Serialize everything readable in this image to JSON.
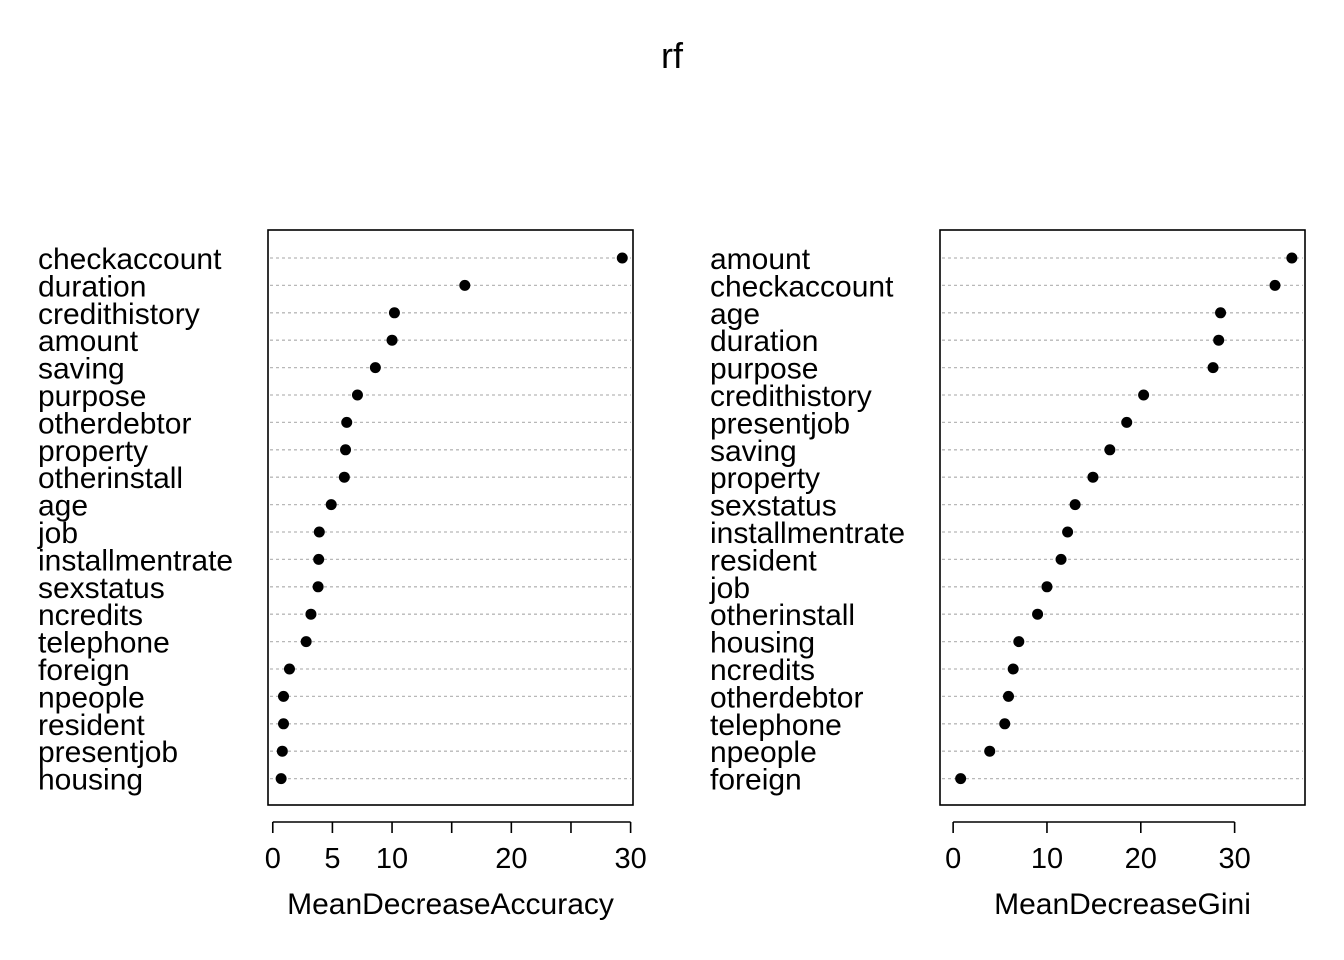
{
  "title": "rf",
  "chart_data": [
    {
      "type": "scatter",
      "style": "dotchart",
      "xlabel": "MeanDecreaseAccuracy",
      "xlim": [
        -0.4,
        30.2
      ],
      "xticks": [
        0,
        5,
        10,
        15,
        20,
        25,
        30
      ],
      "xtick_labels": [
        "0",
        "5",
        "10",
        "",
        "20",
        "",
        "30"
      ],
      "grid": "dotted horizontal",
      "categories": [
        "checkaccount",
        "duration",
        "credithistory",
        "amount",
        "saving",
        "purpose",
        "otherdebtor",
        "property",
        "otherinstall",
        "age",
        "job",
        "installmentrate",
        "sexstatus",
        "ncredits",
        "telephone",
        "foreign",
        "npeople",
        "resident",
        "presentjob",
        "housing"
      ],
      "values": [
        29.3,
        16.1,
        10.2,
        10.0,
        8.6,
        7.1,
        6.2,
        6.1,
        6.0,
        4.9,
        3.9,
        3.85,
        3.8,
        3.2,
        2.8,
        1.4,
        0.9,
        0.9,
        0.8,
        0.7
      ]
    },
    {
      "type": "scatter",
      "style": "dotchart",
      "xlabel": "MeanDecreaseGini",
      "xlim": [
        -1.4,
        37.5
      ],
      "xticks": [
        0,
        10,
        20,
        30
      ],
      "xtick_labels": [
        "0",
        "10",
        "20",
        "30"
      ],
      "grid": "dotted horizontal",
      "categories": [
        "amount",
        "checkaccount",
        "age",
        "duration",
        "purpose",
        "credithistory",
        "presentjob",
        "saving",
        "property",
        "sexstatus",
        "installmentrate",
        "resident",
        "job",
        "otherinstall",
        "housing",
        "ncredits",
        "otherdebtor",
        "telephone",
        "npeople",
        "foreign"
      ],
      "values": [
        36.1,
        34.3,
        28.5,
        28.3,
        27.7,
        20.3,
        18.5,
        16.7,
        14.9,
        13.0,
        12.2,
        11.5,
        10.0,
        9.0,
        7.0,
        6.4,
        5.9,
        5.5,
        3.9,
        0.8
      ]
    }
  ]
}
